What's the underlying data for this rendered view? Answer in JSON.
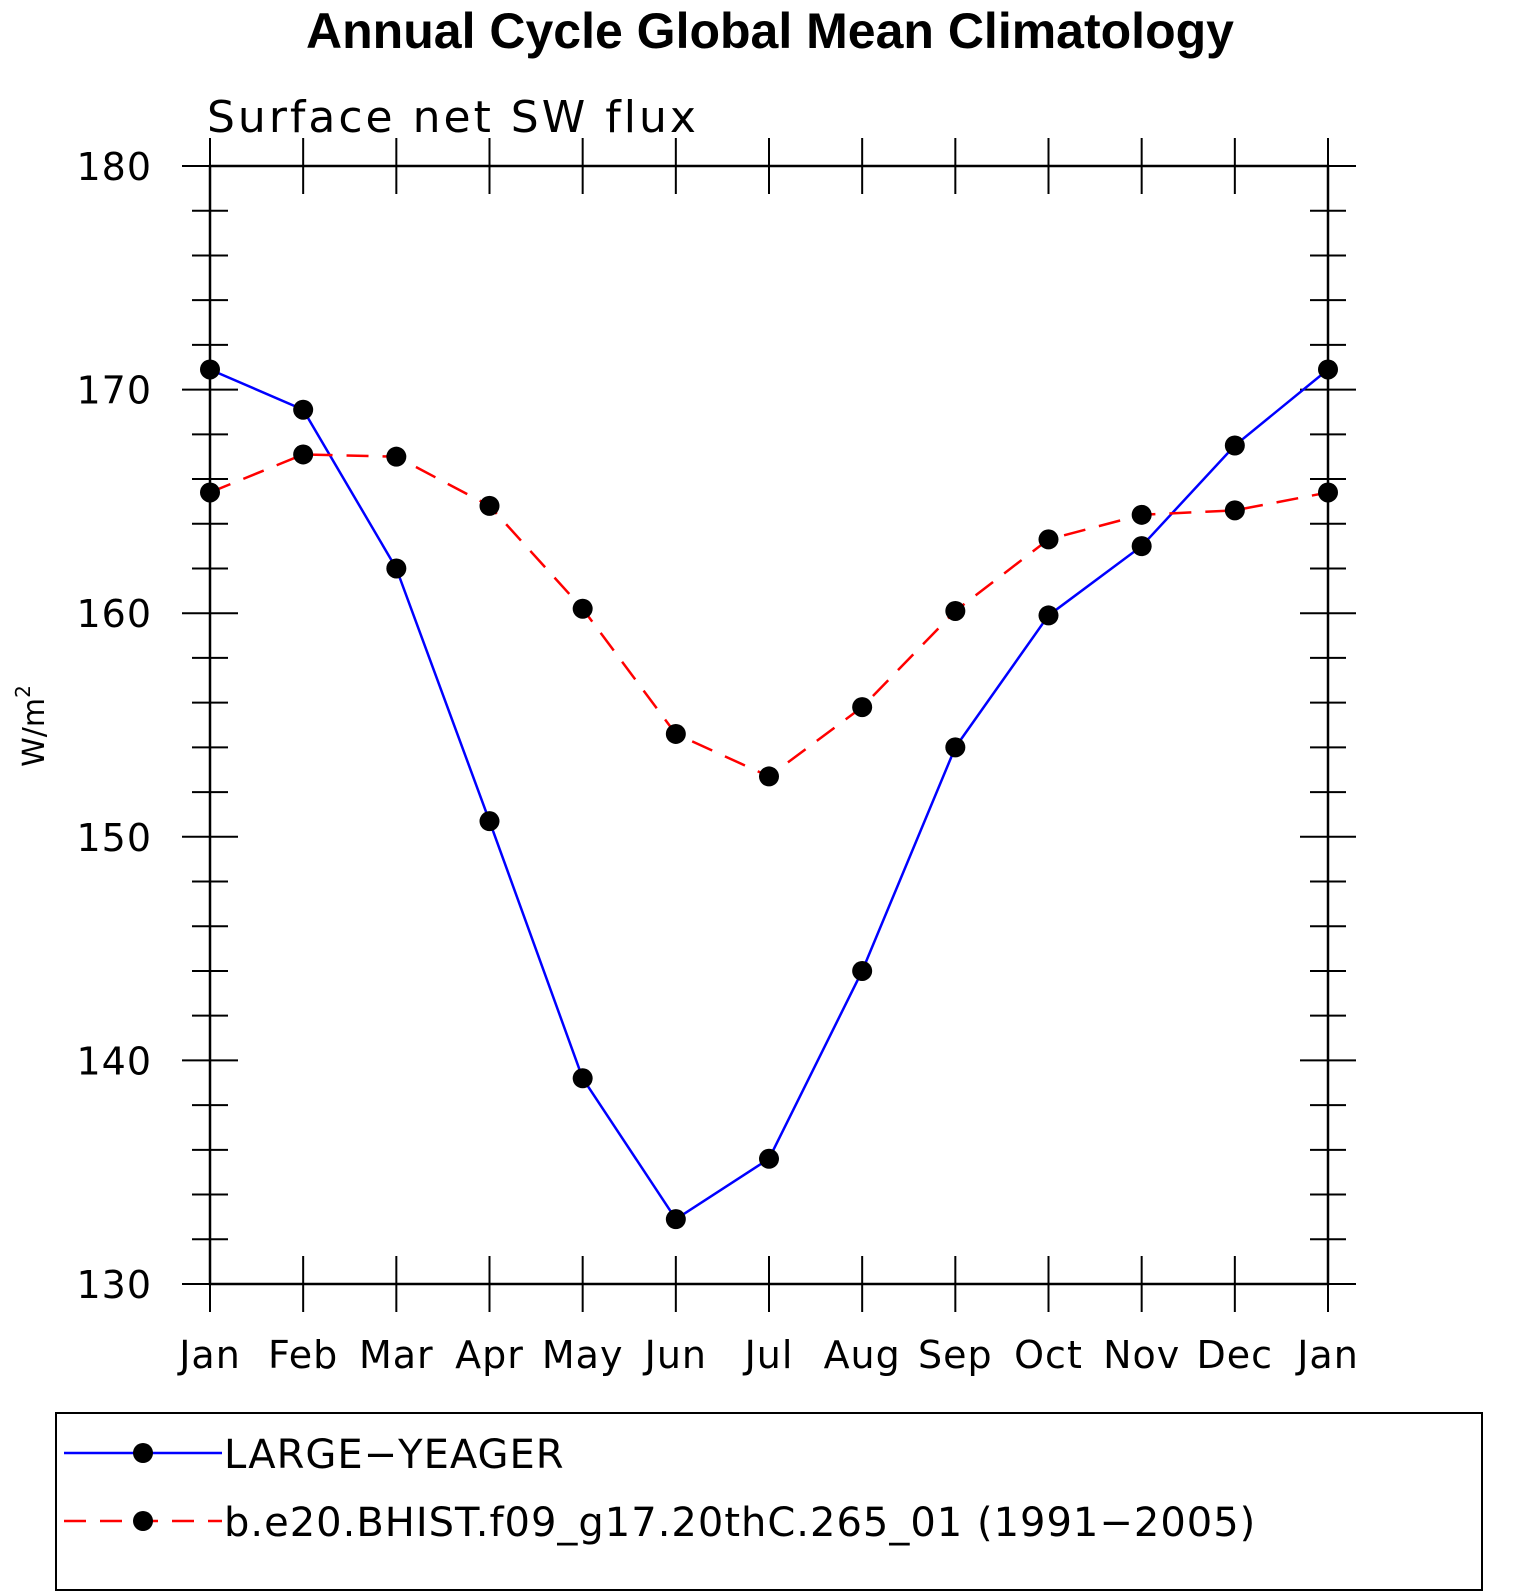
{
  "chart_data": {
    "type": "line",
    "title": "Annual Cycle Global Mean Climatology",
    "subtitle": "Surface net SW flux",
    "xlabel": "",
    "ylabel": "W/m",
    "ylabel_superscript": "2",
    "ylim": [
      130,
      180
    ],
    "yticks": [
      130,
      140,
      150,
      160,
      170,
      180
    ],
    "categories": [
      "Jan",
      "Feb",
      "Mar",
      "Apr",
      "May",
      "Jun",
      "Jul",
      "Aug",
      "Sep",
      "Oct",
      "Nov",
      "Dec",
      "Jan"
    ],
    "series": [
      {
        "name": "LARGE−YEAGER",
        "color": "#0000ff",
        "style": "solid",
        "values": [
          170.9,
          169.1,
          162.0,
          150.7,
          139.2,
          132.9,
          135.6,
          144.0,
          154.0,
          159.9,
          163.0,
          167.5,
          170.9
        ]
      },
      {
        "name": "b.e20.BHIST.f09_g17.20thC.265_01 (1991−2005)",
        "color": "#ff0000",
        "style": "dashed",
        "values": [
          165.4,
          167.1,
          167.0,
          164.8,
          160.2,
          154.6,
          152.7,
          155.8,
          160.1,
          163.3,
          164.4,
          164.6,
          165.4
        ]
      }
    ],
    "marker_color": "#000000"
  }
}
